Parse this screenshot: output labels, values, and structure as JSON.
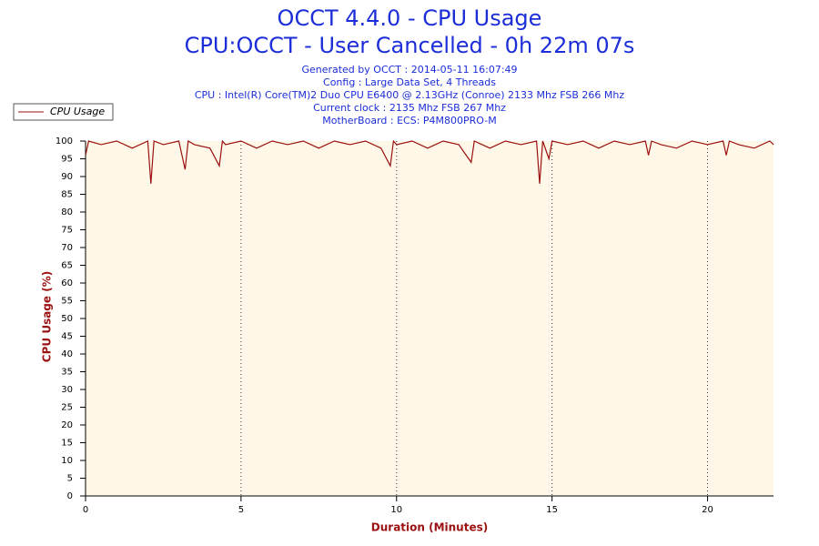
{
  "chart_data": {
    "type": "line",
    "title": "OCCT 4.4.0 - CPU Usage",
    "subtitle": "CPU:OCCT - User Cancelled - 0h 22m 07s",
    "info": [
      "Generated by OCCT : 2014-05-11 16:07:49",
      "Config : Large Data Set, 4 Threads",
      "CPU : Intel(R) Core(TM)2 Duo CPU E6400 @ 2.13GHz (Conroe) 2133 Mhz FSB 266 Mhz",
      "Current clock : 2135 Mhz FSB 267 Mhz",
      "MotherBoard : ECS: P4M800PRO-M"
    ],
    "x_label": "Duration (Minutes)",
    "y_label": "CPU Usage (%)",
    "x": [
      0,
      0.1,
      0.5,
      1,
      1.5,
      2,
      2.1,
      2.2,
      2.5,
      3,
      3.2,
      3.3,
      3.5,
      4,
      4.3,
      4.4,
      4.5,
      5,
      5.5,
      6,
      6.5,
      7,
      7.5,
      8,
      8.5,
      9,
      9.5,
      9.8,
      9.9,
      10,
      10.5,
      11,
      11.5,
      12,
      12.4,
      12.5,
      13,
      13.5,
      14,
      14.5,
      14.6,
      14.7,
      14.9,
      15,
      15.5,
      16,
      16.5,
      17,
      17.5,
      18,
      18.1,
      18.2,
      18.5,
      19,
      19.5,
      20,
      20.5,
      20.6,
      20.7,
      21,
      21.5,
      22,
      22.12
    ],
    "series": [
      {
        "name": "CPU Usage",
        "color": "#9b1010",
        "values": [
          96,
          100,
          99,
          100,
          98,
          100,
          88,
          100,
          99,
          100,
          92,
          100,
          99,
          98,
          93,
          100,
          99,
          100,
          98,
          100,
          99,
          100,
          98,
          100,
          99,
          100,
          98,
          93,
          100,
          99,
          100,
          98,
          100,
          99,
          94,
          100,
          98,
          100,
          99,
          100,
          88,
          100,
          95,
          100,
          99,
          100,
          98,
          100,
          99,
          100,
          96,
          100,
          99,
          98,
          100,
          99,
          100,
          96,
          100,
          99,
          98,
          100,
          99
        ]
      }
    ],
    "xlim": [
      0,
      22.12
    ],
    "ylim": [
      0,
      100
    ],
    "xticks": [
      0,
      5,
      10,
      15,
      20
    ],
    "yticks": [
      0,
      5,
      10,
      15,
      20,
      25,
      30,
      35,
      40,
      45,
      50,
      55,
      60,
      65,
      70,
      75,
      80,
      85,
      90,
      95,
      100
    ],
    "grid": true
  }
}
